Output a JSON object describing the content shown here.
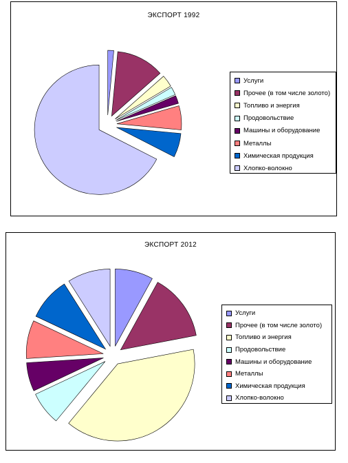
{
  "chart_data": [
    {
      "type": "pie",
      "title": "ЭКСПОРТ 1992",
      "categories": [
        "Услуги",
        "Прочее (в том числе золото)",
        "Топливо и энергия",
        "Продовольствие",
        "Машины и оборудование",
        "Металлы",
        "Химическая продукция",
        "Хлопко-волокно"
      ],
      "values": [
        1.5,
        12,
        3,
        2,
        2,
        6,
        6,
        67.5
      ],
      "exploded": true,
      "legend": "right"
    },
    {
      "type": "pie",
      "title": "ЭКСПОРТ 2012",
      "categories": [
        "Услуги",
        "Прочее (в том числе золото)",
        "Топливо и энергия",
        "Продовольствие",
        "Машины и оборудование",
        "Металлы",
        "Химическая продукция",
        "Хлопко-волокно"
      ],
      "values": [
        8,
        14,
        39,
        7,
        6,
        8,
        9,
        9
      ],
      "exploded": true,
      "legend": "right"
    }
  ],
  "colors": [
    "#9999ff",
    "#993366",
    "#ffffcc",
    "#ccffff",
    "#660066",
    "#ff8080",
    "#0066cc",
    "#ccccff"
  ]
}
